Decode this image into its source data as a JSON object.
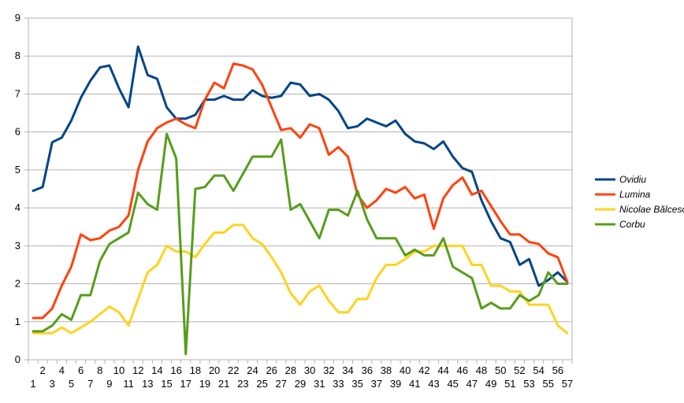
{
  "chart_data": {
    "type": "line",
    "title": "",
    "xlabel": "",
    "ylabel": "",
    "ylim": [
      0,
      9
    ],
    "yticks": [
      0,
      1,
      2,
      3,
      4,
      5,
      6,
      7,
      8,
      9
    ],
    "grid": "horizontal",
    "legend_position": "right",
    "x": [
      1,
      2,
      3,
      4,
      5,
      6,
      7,
      8,
      9,
      10,
      11,
      12,
      13,
      14,
      15,
      16,
      17,
      18,
      19,
      20,
      21,
      22,
      23,
      24,
      25,
      26,
      27,
      28,
      29,
      30,
      31,
      32,
      33,
      34,
      35,
      36,
      37,
      38,
      39,
      40,
      41,
      42,
      43,
      44,
      45,
      46,
      47,
      48,
      49,
      50,
      51,
      52,
      53,
      54,
      55,
      56,
      57
    ],
    "x_tick_labels": [
      "1",
      "2",
      "3",
      "4",
      "5",
      "6",
      "7",
      "8",
      "9",
      "10",
      "11",
      "12",
      "13",
      "14",
      "15",
      "16",
      "17",
      "18",
      "19",
      "20",
      "21",
      "22",
      "23",
      "24",
      "25",
      "26",
      "27",
      "28",
      "29",
      "30",
      "31",
      "32",
      "33",
      "34",
      "35",
      "36",
      "37",
      "38",
      "39",
      "40",
      "41",
      "42",
      "43",
      "44",
      "45",
      "46",
      "47",
      "48",
      "49",
      "50",
      "51",
      "52",
      "53",
      "54",
      "55",
      "56",
      "57"
    ],
    "series": [
      {
        "name": "Ovidiu",
        "color": "#004586",
        "values": [
          4.45,
          4.55,
          5.73,
          5.85,
          6.3,
          6.9,
          7.35,
          7.7,
          7.75,
          7.15,
          6.65,
          8.25,
          7.5,
          7.4,
          6.65,
          6.35,
          6.35,
          6.45,
          6.85,
          6.85,
          6.95,
          6.85,
          6.85,
          7.1,
          6.95,
          6.9,
          6.95,
          7.3,
          7.25,
          6.95,
          7.0,
          6.85,
          6.55,
          6.1,
          6.15,
          6.35,
          6.25,
          6.15,
          6.3,
          5.95,
          5.75,
          5.7,
          5.55,
          5.75,
          5.35,
          5.05,
          4.95,
          4.2,
          3.65,
          3.2,
          3.1,
          2.5,
          2.65,
          1.95,
          2.1,
          2.3,
          2.05
        ]
      },
      {
        "name": "Lumina",
        "color": "#ff420e",
        "values": [
          1.1,
          1.1,
          1.35,
          1.95,
          2.45,
          3.3,
          3.15,
          3.2,
          3.4,
          3.5,
          3.8,
          5.0,
          5.75,
          6.1,
          6.25,
          6.35,
          6.2,
          6.1,
          6.85,
          7.3,
          7.15,
          7.8,
          7.75,
          7.65,
          7.25,
          6.65,
          6.05,
          6.1,
          5.85,
          6.2,
          6.1,
          5.4,
          5.6,
          5.35,
          4.35,
          4.0,
          4.2,
          4.5,
          4.4,
          4.55,
          4.25,
          4.35,
          3.45,
          4.25,
          4.6,
          4.8,
          4.35,
          4.45,
          4.05,
          3.65,
          3.3,
          3.3,
          3.1,
          3.05,
          2.8,
          2.7,
          2.05
        ]
      },
      {
        "name": "Nicolae Bălcescu",
        "color": "#ffd320",
        "values": [
          0.7,
          0.7,
          0.7,
          0.85,
          0.7,
          0.85,
          1.0,
          1.2,
          1.4,
          1.25,
          0.9,
          1.6,
          2.3,
          2.5,
          3.0,
          2.85,
          2.85,
          2.7,
          3.05,
          3.35,
          3.35,
          3.55,
          3.55,
          3.2,
          3.05,
          2.7,
          2.3,
          1.75,
          1.45,
          1.8,
          1.95,
          1.55,
          1.25,
          1.25,
          1.6,
          1.6,
          2.15,
          2.5,
          2.5,
          2.65,
          2.85,
          2.85,
          3.0,
          3.0,
          3.0,
          3.0,
          2.5,
          2.5,
          1.95,
          1.95,
          1.8,
          1.8,
          1.45,
          1.45,
          1.45,
          0.9,
          0.7
        ]
      },
      {
        "name": "Corbu",
        "color": "#579d1c",
        "values": [
          0.75,
          0.75,
          0.9,
          1.2,
          1.05,
          1.7,
          1.7,
          2.6,
          3.05,
          3.2,
          3.35,
          4.4,
          4.1,
          3.95,
          5.95,
          5.3,
          0.15,
          4.5,
          4.55,
          4.85,
          4.85,
          4.45,
          4.9,
          5.35,
          5.35,
          5.35,
          5.8,
          3.95,
          4.1,
          3.65,
          3.2,
          3.95,
          3.95,
          3.8,
          4.45,
          3.7,
          3.2,
          3.2,
          3.2,
          2.75,
          2.9,
          2.75,
          2.75,
          3.2,
          2.45,
          2.3,
          2.15,
          1.35,
          1.5,
          1.35,
          1.35,
          1.7,
          1.55,
          1.7,
          2.3,
          2.0,
          2.0
        ]
      }
    ]
  }
}
